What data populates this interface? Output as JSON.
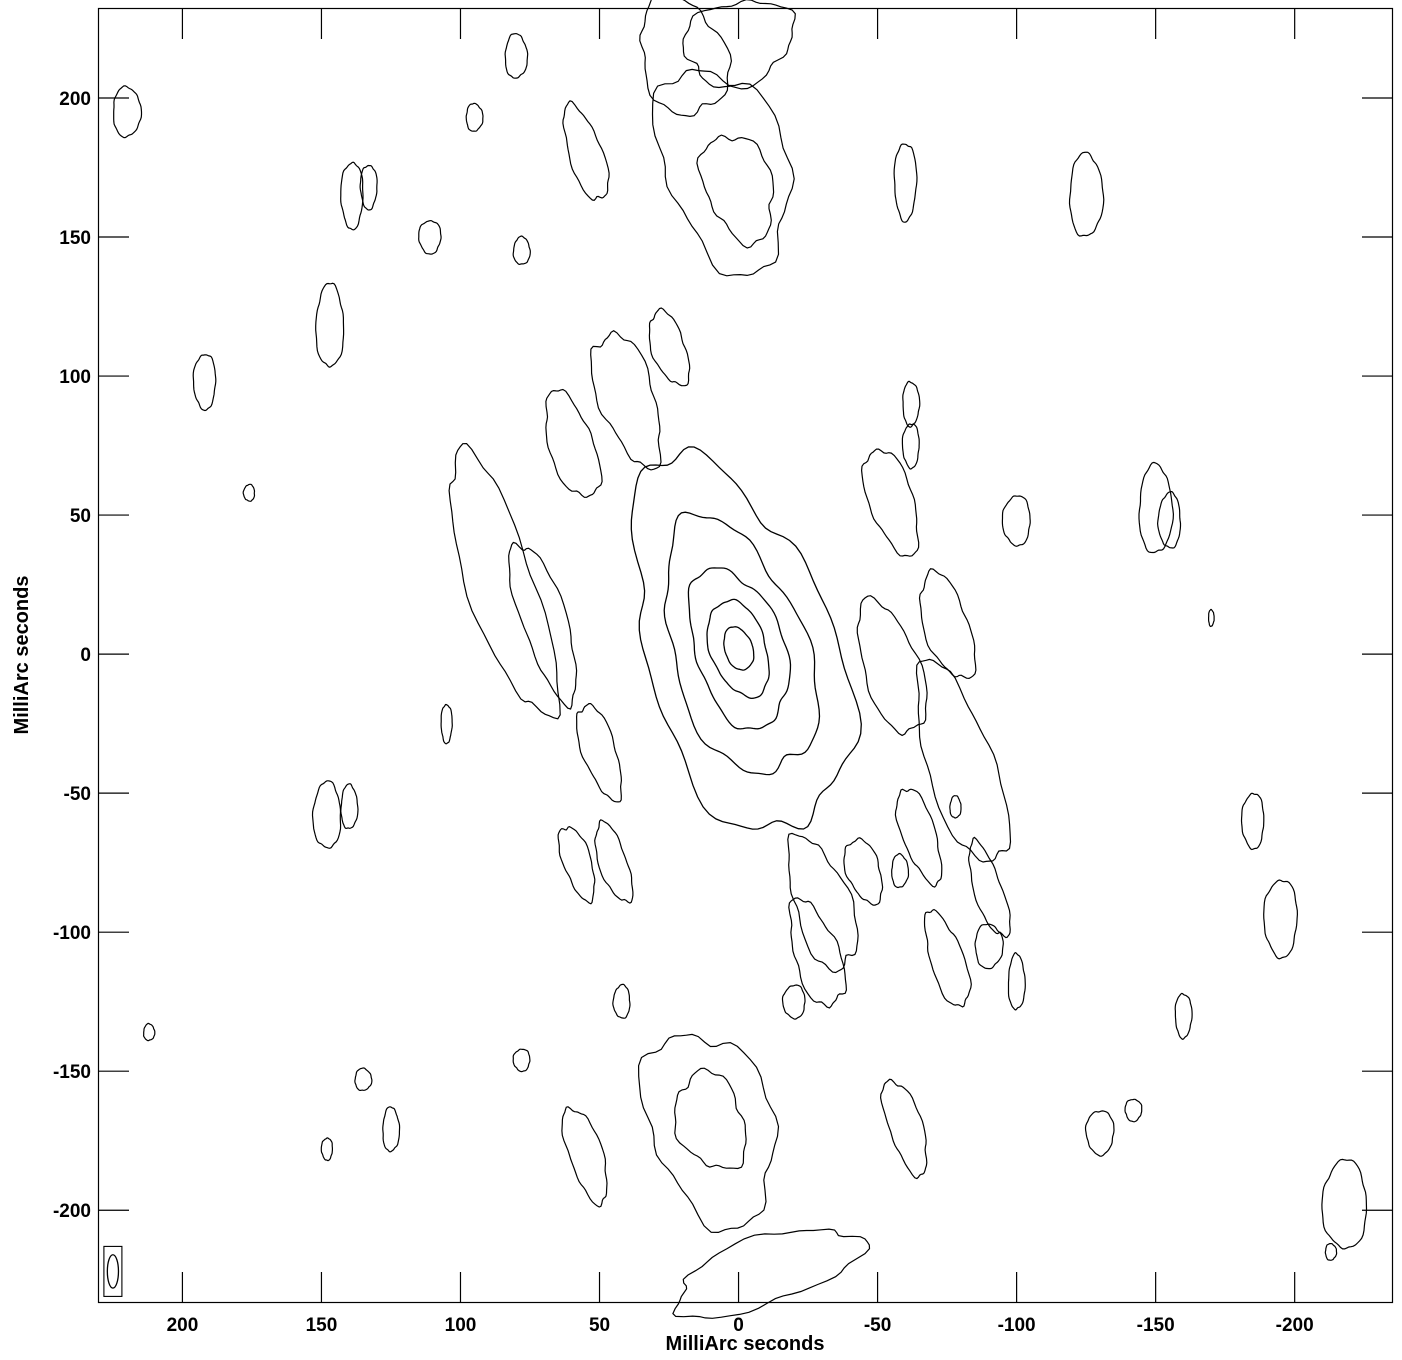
{
  "chart_data": {
    "type": "contour",
    "title": "",
    "xlabel": "MilliArc seconds",
    "ylabel": "MilliArc seconds",
    "xlim": [
      230,
      -235
    ],
    "ylim": [
      -233,
      232
    ],
    "x_ticks": [
      200,
      150,
      100,
      50,
      0,
      -50,
      -100,
      -150,
      -200
    ],
    "y_ticks": [
      200,
      150,
      100,
      50,
      0,
      -50,
      -100,
      -150,
      -200
    ],
    "x_tick_labels": [
      "200",
      "150",
      "100",
      "50",
      "0",
      "-50",
      "-100",
      "-150",
      "-200"
    ],
    "y_tick_labels": [
      "200",
      "150",
      "100",
      "50",
      "0",
      "-50",
      "-100",
      "-150",
      "-200"
    ],
    "source_peak": [
      0,
      2
    ],
    "core_contours": [
      {
        "level": 1,
        "rx": 5,
        "ry": 8
      },
      {
        "level": 2,
        "rx": 10,
        "ry": 18
      },
      {
        "level": 3,
        "rx": 16,
        "ry": 30
      },
      {
        "level": 4,
        "rx": 24,
        "ry": 48
      },
      {
        "level": 5,
        "rx": 34,
        "ry": 70
      }
    ],
    "features": [
      {
        "kind": "lobe",
        "x": 5,
        "y": 175,
        "rx": 22,
        "ry": 38
      },
      {
        "kind": "lobe",
        "x": 0,
        "y": 168,
        "rx": 12,
        "ry": 20
      },
      {
        "kind": "lobe",
        "x": 10,
        "y": -170,
        "rx": 22,
        "ry": 36
      },
      {
        "kind": "lobe",
        "x": 10,
        "y": -168,
        "rx": 12,
        "ry": 18
      },
      {
        "kind": "lobe",
        "x": 40,
        "y": 92,
        "rx": 10,
        "ry": 25
      },
      {
        "kind": "lobe",
        "x": -30,
        "y": -90,
        "rx": 10,
        "ry": 25
      },
      {
        "kind": "lobe",
        "x": -28,
        "y": -108,
        "rx": 8,
        "ry": 20
      },
      {
        "kind": "lobe",
        "x": 20,
        "y": 215,
        "rx": 15,
        "ry": 22
      },
      {
        "kind": "lobe",
        "x": 0,
        "y": 220,
        "rx": 20,
        "ry": 15
      },
      {
        "kind": "lobe",
        "x": -10,
        "y": -222,
        "rx": 35,
        "ry": 12
      },
      {
        "kind": "streak",
        "x": 85,
        "y": 25,
        "rx": 12,
        "ry": 50
      },
      {
        "kind": "streak",
        "x": 70,
        "y": 12,
        "rx": 8,
        "ry": 30
      },
      {
        "kind": "streak",
        "x": 60,
        "y": 75,
        "rx": 8,
        "ry": 20
      },
      {
        "kind": "streak",
        "x": 50,
        "y": -35,
        "rx": 6,
        "ry": 18
      },
      {
        "kind": "streak",
        "x": 45,
        "y": -75,
        "rx": 5,
        "ry": 15
      },
      {
        "kind": "streak",
        "x": -55,
        "y": -5,
        "rx": 10,
        "ry": 25
      },
      {
        "kind": "streak",
        "x": -80,
        "y": -40,
        "rx": 12,
        "ry": 38
      },
      {
        "kind": "streak",
        "x": -75,
        "y": -110,
        "rx": 6,
        "ry": 18
      },
      {
        "kind": "streak",
        "x": -55,
        "y": 55,
        "rx": 8,
        "ry": 20
      },
      {
        "kind": "streak",
        "x": -65,
        "y": -65,
        "rx": 6,
        "ry": 18
      },
      {
        "kind": "streak",
        "x": -90,
        "y": -85,
        "rx": 5,
        "ry": 18
      },
      {
        "kind": "streak",
        "x": 55,
        "y": 180,
        "rx": 6,
        "ry": 18
      },
      {
        "kind": "streak",
        "x": 25,
        "y": 110,
        "rx": 6,
        "ry": 14
      },
      {
        "kind": "streak",
        "x": -45,
        "y": -78,
        "rx": 6,
        "ry": 12
      },
      {
        "kind": "streak",
        "x": -60,
        "y": -170,
        "rx": 6,
        "ry": 18
      },
      {
        "kind": "streak",
        "x": 55,
        "y": -180,
        "rx": 6,
        "ry": 18
      },
      {
        "kind": "streak",
        "x": 58,
        "y": -75,
        "rx": 5,
        "ry": 14
      },
      {
        "kind": "streak",
        "x": -75,
        "y": 10,
        "rx": 8,
        "ry": 20
      },
      {
        "kind": "blob",
        "x": 220,
        "y": 195,
        "rx": 5,
        "ry": 9
      },
      {
        "kind": "blob",
        "x": 192,
        "y": 98,
        "rx": 4,
        "ry": 10
      },
      {
        "kind": "blob",
        "x": 176,
        "y": 58,
        "rx": 2,
        "ry": 3
      },
      {
        "kind": "blob",
        "x": 147,
        "y": 118,
        "rx": 5,
        "ry": 15
      },
      {
        "kind": "blob",
        "x": 139,
        "y": 165,
        "rx": 4,
        "ry": 12
      },
      {
        "kind": "blob",
        "x": 133,
        "y": 168,
        "rx": 3,
        "ry": 8
      },
      {
        "kind": "blob",
        "x": 111,
        "y": 150,
        "rx": 4,
        "ry": 6
      },
      {
        "kind": "blob",
        "x": 148,
        "y": -58,
        "rx": 5,
        "ry": 12
      },
      {
        "kind": "blob",
        "x": 140,
        "y": -55,
        "rx": 3,
        "ry": 8
      },
      {
        "kind": "blob",
        "x": 105,
        "y": -25,
        "rx": 2,
        "ry": 7
      },
      {
        "kind": "blob",
        "x": 95,
        "y": 193,
        "rx": 3,
        "ry": 5
      },
      {
        "kind": "blob",
        "x": 80,
        "y": 215,
        "rx": 4,
        "ry": 8
      },
      {
        "kind": "blob",
        "x": 78,
        "y": 145,
        "rx": 3,
        "ry": 5
      },
      {
        "kind": "blob",
        "x": -60,
        "y": 170,
        "rx": 4,
        "ry": 14
      },
      {
        "kind": "blob",
        "x": -62,
        "y": 90,
        "rx": 3,
        "ry": 8
      },
      {
        "kind": "blob",
        "x": -62,
        "y": 75,
        "rx": 3,
        "ry": 8
      },
      {
        "kind": "blob",
        "x": -100,
        "y": 48,
        "rx": 5,
        "ry": 9
      },
      {
        "kind": "blob",
        "x": -78,
        "y": -55,
        "rx": 2,
        "ry": 4
      },
      {
        "kind": "blob",
        "x": -125,
        "y": 165,
        "rx": 6,
        "ry": 15
      },
      {
        "kind": "blob",
        "x": -150,
        "y": 52,
        "rx": 6,
        "ry": 16
      },
      {
        "kind": "blob",
        "x": -155,
        "y": 48,
        "rx": 4,
        "ry": 10
      },
      {
        "kind": "blob",
        "x": -195,
        "y": -95,
        "rx": 6,
        "ry": 14
      },
      {
        "kind": "blob",
        "x": -185,
        "y": -60,
        "rx": 4,
        "ry": 10
      },
      {
        "kind": "blob",
        "x": -130,
        "y": -172,
        "rx": 5,
        "ry": 8
      },
      {
        "kind": "blob",
        "x": -142,
        "y": -164,
        "rx": 3,
        "ry": 4
      },
      {
        "kind": "blob",
        "x": -218,
        "y": -198,
        "rx": 8,
        "ry": 16
      },
      {
        "kind": "blob",
        "x": -213,
        "y": -215,
        "rx": 2,
        "ry": 3
      },
      {
        "kind": "blob",
        "x": -100,
        "y": -118,
        "rx": 3,
        "ry": 10
      },
      {
        "kind": "blob",
        "x": -90,
        "y": -105,
        "rx": 5,
        "ry": 8
      },
      {
        "kind": "blob",
        "x": -160,
        "y": -130,
        "rx": 3,
        "ry": 8
      },
      {
        "kind": "blob",
        "x": -20,
        "y": -125,
        "rx": 4,
        "ry": 6
      },
      {
        "kind": "blob",
        "x": 42,
        "y": -125,
        "rx": 3,
        "ry": 6
      },
      {
        "kind": "blob",
        "x": 78,
        "y": -146,
        "rx": 3,
        "ry": 4
      },
      {
        "kind": "blob",
        "x": 125,
        "y": -171,
        "rx": 3,
        "ry": 8
      },
      {
        "kind": "blob",
        "x": 135,
        "y": -153,
        "rx": 3,
        "ry": 4
      },
      {
        "kind": "blob",
        "x": 148,
        "y": -178,
        "rx": 2,
        "ry": 4
      },
      {
        "kind": "blob",
        "x": 212,
        "y": -136,
        "rx": 2,
        "ry": 3
      },
      {
        "kind": "blob",
        "x": -170,
        "y": 13,
        "rx": 1,
        "ry": 3
      },
      {
        "kind": "blob",
        "x": -58,
        "y": -78,
        "rx": 3,
        "ry": 6
      }
    ],
    "beam": {
      "x": 225,
      "y": -222,
      "rx": 2,
      "ry": 6
    }
  }
}
